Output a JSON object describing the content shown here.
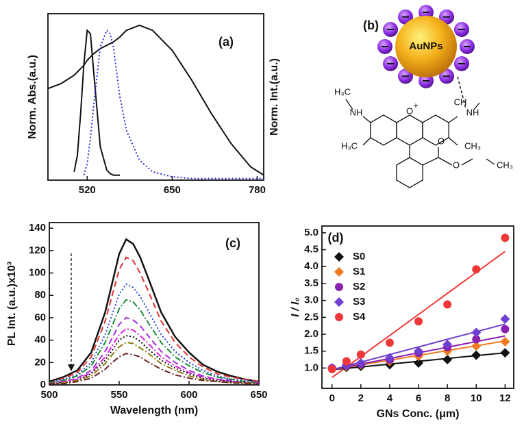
{
  "chart_data": [
    {
      "type": "line",
      "annotation": "(a)",
      "ylabel": "Norm. Abs.(a.u.)",
      "y2label": "Norm. Int.(a.u.)",
      "y2label_color": "#2a2ae0",
      "x": [
        460,
        480,
        500,
        505,
        510,
        515,
        520,
        525,
        530,
        540,
        550,
        555,
        560,
        570,
        580,
        600,
        620,
        650,
        680,
        710,
        740,
        770,
        790
      ],
      "xlim": [
        460,
        790
      ],
      "xticks": [
        520,
        650,
        780
      ],
      "ylim": [
        0,
        1
      ],
      "series": [
        {
          "color": "#111111",
          "style": "solid",
          "values": [
            null,
            null,
            0.05,
            0.15,
            0.4,
            0.7,
            0.9,
            0.88,
            0.65,
            0.2,
            0.06,
            0.04,
            0.03,
            0.03,
            null,
            null,
            null,
            null,
            null,
            null,
            null,
            null,
            null
          ]
        },
        {
          "color": "#111111",
          "style": "solid",
          "values": [
            0.55,
            0.58,
            0.63,
            0.65,
            0.67,
            0.69,
            0.72,
            0.74,
            0.76,
            0.79,
            0.81,
            0.82,
            0.83,
            0.86,
            0.9,
            0.93,
            0.9,
            0.78,
            0.6,
            0.4,
            0.22,
            0.08,
            0.03
          ]
        },
        {
          "color": "#2a2ae0",
          "style": "dotted",
          "values": [
            null,
            null,
            null,
            null,
            null,
            0.03,
            0.1,
            0.25,
            0.45,
            0.8,
            0.9,
            0.88,
            0.8,
            0.5,
            0.3,
            0.12,
            0.05,
            0.02,
            0.01,
            0.01,
            0.01,
            0.01,
            0.01
          ]
        }
      ]
    },
    {
      "type": "line",
      "annotation": "(c)",
      "xlabel": "Wavelength (nm)",
      "ylabel": "PL Int. (a.u.)x10³",
      "x": [
        500,
        510,
        520,
        530,
        540,
        545,
        550,
        555,
        560,
        565,
        570,
        580,
        590,
        600,
        610,
        620,
        630,
        640,
        650
      ],
      "xlim": [
        500,
        650
      ],
      "xticks": [
        500,
        550,
        600,
        650
      ],
      "ylim": [
        0,
        145
      ],
      "yticks": [
        0,
        20,
        40,
        60,
        80,
        100,
        120,
        140
      ],
      "series": [
        {
          "color": "#111111",
          "style": "solid",
          "values": [
            3,
            7,
            13,
            29,
            65,
            91,
            117,
            130,
            126,
            114,
            98,
            65,
            43,
            29,
            18,
            12,
            8,
            5,
            3
          ]
        },
        {
          "color": "#e03030",
          "style": "dashed",
          "values": [
            2,
            6,
            11,
            25,
            57,
            80,
            103,
            114,
            111,
            100,
            86,
            57,
            38,
            25,
            16,
            10,
            7,
            5,
            3
          ]
        },
        {
          "color": "#2040e0",
          "style": "dotted",
          "values": [
            2,
            5,
            9,
            20,
            45,
            63,
            81,
            90,
            87,
            79,
            68,
            45,
            30,
            20,
            13,
            8,
            5,
            4,
            2
          ]
        },
        {
          "color": "#1a8a3a",
          "style": "dashdot",
          "values": [
            2,
            4,
            8,
            17,
            38,
            53,
            68,
            76,
            74,
            67,
            57,
            38,
            25,
            17,
            11,
            7,
            5,
            3,
            2
          ]
        },
        {
          "color": "#a030e0",
          "style": "dashed",
          "values": [
            1,
            3,
            6,
            13,
            30,
            42,
            54,
            60,
            58,
            53,
            45,
            30,
            20,
            13,
            8,
            5,
            4,
            2,
            2
          ]
        },
        {
          "color": "#e020e0",
          "style": "dashdot",
          "values": [
            1,
            3,
            5,
            11,
            25,
            35,
            45,
            50,
            49,
            44,
            38,
            25,
            17,
            11,
            7,
            5,
            3,
            2,
            1
          ]
        },
        {
          "color": "#111111",
          "style": "dotted",
          "values": [
            1,
            2,
            4,
            10,
            22,
            31,
            40,
            44,
            43,
            39,
            33,
            22,
            15,
            10,
            6,
            4,
            3,
            2,
            1
          ]
        },
        {
          "color": "#8a7a10",
          "style": "dashdot",
          "values": [
            1,
            2,
            4,
            8,
            19,
            27,
            34,
            38,
            37,
            33,
            29,
            19,
            13,
            8,
            5,
            3,
            2,
            2,
            1
          ]
        },
        {
          "color": "#6a2020",
          "style": "dashdot",
          "values": [
            1,
            1,
            3,
            6,
            14,
            20,
            25,
            28,
            27,
            25,
            21,
            14,
            9,
            6,
            4,
            3,
            2,
            1,
            1
          ]
        }
      ]
    },
    {
      "type": "scatter",
      "annotation": "(d)",
      "xlabel": "GNs Conc. (μm)",
      "ylabel": "I / I₀",
      "legend": "upper-left",
      "x": [
        0,
        1,
        2,
        4,
        6,
        8,
        10,
        12
      ],
      "xlim": [
        -0.7,
        12.6
      ],
      "xticks": [
        0,
        2,
        4,
        6,
        8,
        10,
        12
      ],
      "ylim": [
        0.4,
        5.2
      ],
      "yticks": [
        {
          "value": 1,
          "label": "1.0"
        },
        {
          "value": 1.5,
          "label": "1.5"
        },
        {
          "value": 2,
          "label": "2.0"
        },
        {
          "value": 2.5,
          "label": "2.5"
        },
        {
          "value": 3,
          "label": "3.0"
        },
        {
          "value": 3.5,
          "label": "3.5"
        },
        {
          "value": 4,
          "label": "4.0"
        },
        {
          "value": 4.5,
          "label": "4.5"
        },
        {
          "value": 5,
          "label": "5.0"
        }
      ],
      "series": [
        {
          "name": "S0",
          "color": "#111111",
          "marker": "diamond",
          "values": [
            1.0,
            1.02,
            1.05,
            1.1,
            1.15,
            1.25,
            1.38,
            1.45
          ],
          "fit": [
            0.95,
            1.45
          ]
        },
        {
          "name": "S1",
          "color": "#f07a20",
          "marker": "diamond",
          "values": [
            1.0,
            1.05,
            1.1,
            1.2,
            1.35,
            1.5,
            1.65,
            1.78
          ],
          "fit": [
            0.95,
            1.8
          ]
        },
        {
          "name": "S2",
          "color": "#8a20b0",
          "marker": "circle",
          "values": [
            1.0,
            1.07,
            1.12,
            1.25,
            1.45,
            1.62,
            1.85,
            2.15
          ],
          "fit": [
            0.95,
            1.95
          ]
        },
        {
          "name": "S3",
          "color": "#7040d0",
          "marker": "diamond",
          "values": [
            1.0,
            1.08,
            1.15,
            1.3,
            1.5,
            1.7,
            2.05,
            2.45
          ],
          "fit": [
            0.95,
            2.3
          ]
        },
        {
          "name": "S4",
          "color": "#ee3838",
          "marker": "circle",
          "values": [
            0.97,
            1.2,
            1.4,
            1.75,
            2.38,
            2.88,
            3.92,
            4.85
          ],
          "fit": [
            0.72,
            4.45
          ]
        }
      ]
    }
  ],
  "diagram": {
    "label": "(b)",
    "particle": "AuNPs",
    "atoms": [
      "H₃C",
      "NH",
      "O",
      "+",
      "CH",
      "NH",
      "H₃C",
      "CH₃",
      "O",
      "O",
      "CH₃"
    ]
  }
}
